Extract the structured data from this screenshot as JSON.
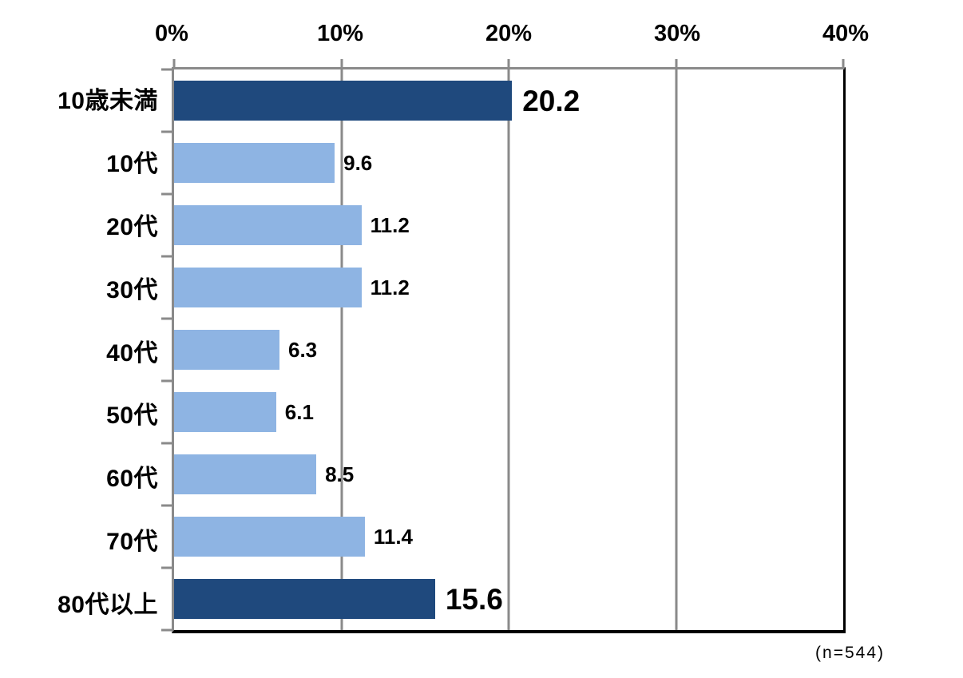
{
  "chart_data": {
    "type": "bar",
    "orientation": "horizontal",
    "title": "",
    "categories": [
      "10歳未満",
      "10代",
      "20代",
      "30代",
      "40代",
      "50代",
      "60代",
      "70代",
      "80代以上"
    ],
    "values": [
      20.2,
      9.6,
      11.2,
      11.2,
      6.3,
      6.1,
      8.5,
      11.4,
      15.6
    ],
    "value_labels": [
      "20.2",
      "9.6",
      "11.2",
      "11.2",
      "6.3",
      "6.1",
      "8.5",
      "11.4",
      "15.6"
    ],
    "highlighted_indices": [
      0,
      8
    ],
    "x_axis": {
      "position": "top",
      "min": 0,
      "max": 40,
      "tick_values": [
        0,
        10,
        20,
        30,
        40
      ],
      "tick_labels": [
        "0%",
        "10%",
        "20%",
        "30%",
        "40%"
      ]
    },
    "grid": true,
    "legend": "none",
    "colors": {
      "bar_default": "#8EB4E3",
      "bar_highlight": "#1F497D",
      "gridline": "#8A8A8A",
      "tick": "#8A8A8A",
      "axis": "#000000"
    },
    "footnote": "(n=544)"
  }
}
